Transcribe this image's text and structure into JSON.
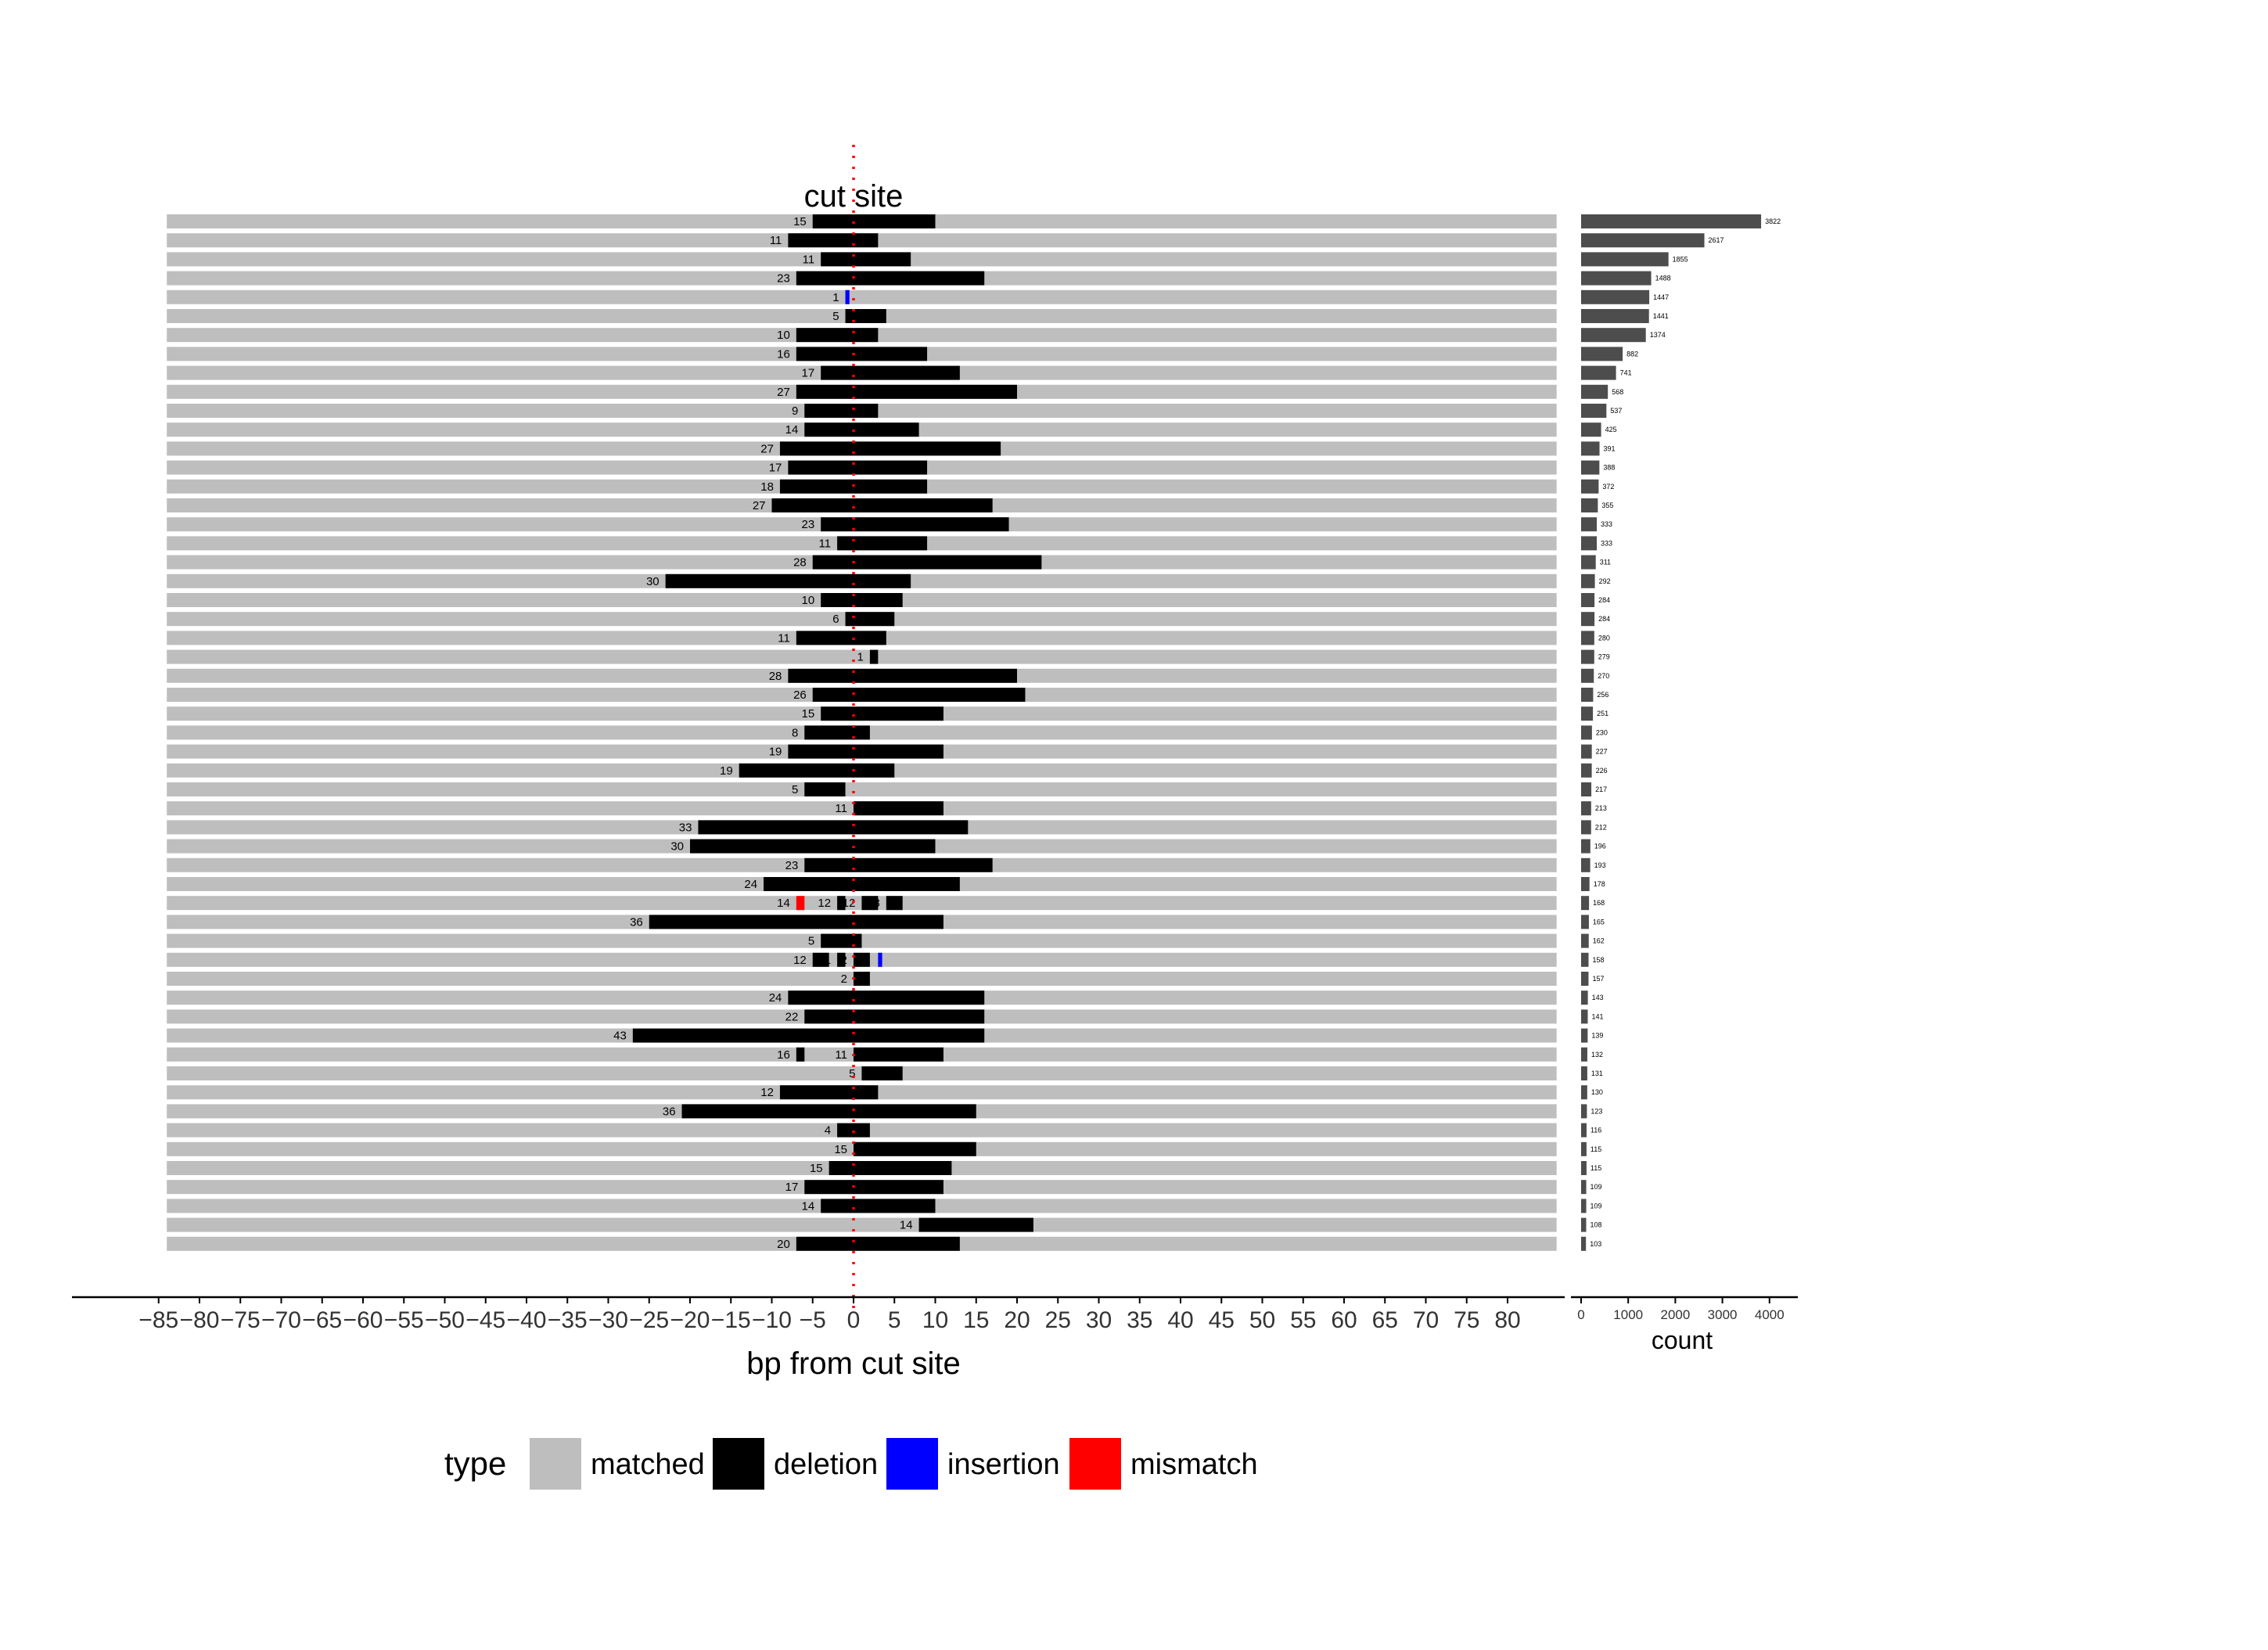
{
  "chart_data": [
    {
      "type": "bar",
      "subtype": "alignment-tracks",
      "annotation": "cut site",
      "xlabel": "bp from cut site",
      "xlim": [
        -85,
        85
      ],
      "xticks": [
        -85,
        -80,
        -75,
        -70,
        -65,
        -60,
        -55,
        -50,
        -45,
        -40,
        -35,
        -30,
        -25,
        -20,
        -15,
        -10,
        -5,
        0,
        5,
        10,
        15,
        20,
        25,
        30,
        35,
        40,
        45,
        50,
        55,
        60,
        65,
        70,
        75,
        80
      ],
      "xtick_labels": [
        "−85",
        "−80",
        "−75",
        "−70",
        "−65",
        "−60",
        "−55",
        "−50",
        "−45",
        "−40",
        "−35",
        "−30",
        "−25",
        "−20",
        "−15",
        "−10",
        "−5",
        "0",
        "5",
        "10",
        "15",
        "20",
        "25",
        "30",
        "35",
        "40",
        "45",
        "50",
        "55",
        "60",
        "65",
        "70",
        "75",
        "80"
      ],
      "matched_range": [
        -84,
        86
      ],
      "cut_site": 0,
      "legend": {
        "title": "type",
        "position": "bottom",
        "items": [
          {
            "label": "matched",
            "color": "#bebebe"
          },
          {
            "label": "deletion",
            "color": "#000000"
          },
          {
            "label": "insertion",
            "color": "#0000ff"
          },
          {
            "label": "mismatch",
            "color": "#ff0000"
          }
        ]
      },
      "rows": [
        {
          "segments": [
            {
              "type": "deletion",
              "start": -5,
              "end": 10,
              "label": "15"
            }
          ]
        },
        {
          "segments": [
            {
              "type": "deletion",
              "start": -8,
              "end": 3,
              "label": "11"
            }
          ]
        },
        {
          "segments": [
            {
              "type": "deletion",
              "start": -4,
              "end": 7,
              "label": "11"
            }
          ]
        },
        {
          "segments": [
            {
              "type": "deletion",
              "start": -7,
              "end": 16,
              "label": "23"
            }
          ]
        },
        {
          "segments": [
            {
              "type": "insertion",
              "start": -1,
              "end": -0.5,
              "label": "1"
            }
          ]
        },
        {
          "segments": [
            {
              "type": "deletion",
              "start": -1,
              "end": 4,
              "label": "5"
            }
          ]
        },
        {
          "segments": [
            {
              "type": "deletion",
              "start": -7,
              "end": 3,
              "label": "10"
            }
          ]
        },
        {
          "segments": [
            {
              "type": "deletion",
              "start": -7,
              "end": 9,
              "label": "16"
            }
          ]
        },
        {
          "segments": [
            {
              "type": "deletion",
              "start": -4,
              "end": 13,
              "label": "17"
            }
          ]
        },
        {
          "segments": [
            {
              "type": "deletion",
              "start": -7,
              "end": 20,
              "label": "27"
            }
          ]
        },
        {
          "segments": [
            {
              "type": "deletion",
              "start": -6,
              "end": 3,
              "label": "9"
            }
          ]
        },
        {
          "segments": [
            {
              "type": "deletion",
              "start": -6,
              "end": 8,
              "label": "14"
            }
          ]
        },
        {
          "segments": [
            {
              "type": "deletion",
              "start": -9,
              "end": 18,
              "label": "27"
            }
          ]
        },
        {
          "segments": [
            {
              "type": "deletion",
              "start": -8,
              "end": 9,
              "label": "17"
            }
          ]
        },
        {
          "segments": [
            {
              "type": "deletion",
              "start": -9,
              "end": 9,
              "label": "18"
            }
          ]
        },
        {
          "segments": [
            {
              "type": "deletion",
              "start": -10,
              "end": 17,
              "label": "27"
            }
          ]
        },
        {
          "segments": [
            {
              "type": "deletion",
              "start": -4,
              "end": 19,
              "label": "23"
            }
          ]
        },
        {
          "segments": [
            {
              "type": "deletion",
              "start": -2,
              "end": 9,
              "label": "11"
            }
          ]
        },
        {
          "segments": [
            {
              "type": "deletion",
              "start": -5,
              "end": 23,
              "label": "28"
            }
          ]
        },
        {
          "segments": [
            {
              "type": "deletion",
              "start": -23,
              "end": 7,
              "label": "30"
            }
          ]
        },
        {
          "segments": [
            {
              "type": "deletion",
              "start": -4,
              "end": 6,
              "label": "10"
            }
          ]
        },
        {
          "segments": [
            {
              "type": "deletion",
              "start": -1,
              "end": 5,
              "label": "6"
            }
          ]
        },
        {
          "segments": [
            {
              "type": "deletion",
              "start": -7,
              "end": 4,
              "label": "11"
            }
          ]
        },
        {
          "segments": [
            {
              "type": "deletion",
              "start": 2,
              "end": 3,
              "label": "1"
            }
          ]
        },
        {
          "segments": [
            {
              "type": "deletion",
              "start": -8,
              "end": 20,
              "label": "28"
            }
          ]
        },
        {
          "segments": [
            {
              "type": "deletion",
              "start": -5,
              "end": 21,
              "label": "26"
            }
          ]
        },
        {
          "segments": [
            {
              "type": "deletion",
              "start": -4,
              "end": 11,
              "label": "15"
            }
          ]
        },
        {
          "segments": [
            {
              "type": "deletion",
              "start": -6,
              "end": 2,
              "label": "8"
            }
          ]
        },
        {
          "segments": [
            {
              "type": "deletion",
              "start": -8,
              "end": 11,
              "label": "19"
            }
          ]
        },
        {
          "segments": [
            {
              "type": "deletion",
              "start": -14,
              "end": 5,
              "label": "19"
            }
          ]
        },
        {
          "segments": [
            {
              "type": "deletion",
              "start": -6,
              "end": -1,
              "label": "5"
            }
          ]
        },
        {
          "segments": [
            {
              "type": "deletion",
              "start": 0,
              "end": 11,
              "label": "11"
            }
          ]
        },
        {
          "segments": [
            {
              "type": "deletion",
              "start": -19,
              "end": 14,
              "label": "33"
            }
          ]
        },
        {
          "segments": [
            {
              "type": "deletion",
              "start": -20,
              "end": 10,
              "label": "30"
            }
          ]
        },
        {
          "segments": [
            {
              "type": "deletion",
              "start": -6,
              "end": 17,
              "label": "23"
            }
          ]
        },
        {
          "segments": [
            {
              "type": "deletion",
              "start": -11,
              "end": 13,
              "label": "24"
            }
          ]
        },
        {
          "segments": [
            {
              "type": "mismatch",
              "start": -7,
              "end": -6,
              "label": "14"
            },
            {
              "type": "deletion",
              "start": -2,
              "end": -1,
              "label": "12"
            },
            {
              "type": "deletion",
              "start": 1,
              "end": 3,
              "label": "12"
            },
            {
              "type": "deletion",
              "start": 4,
              "end": 6,
              "label": "3"
            }
          ]
        },
        {
          "segments": [
            {
              "type": "deletion",
              "start": -25,
              "end": 11,
              "label": "36"
            }
          ]
        },
        {
          "segments": [
            {
              "type": "deletion",
              "start": -4,
              "end": 1,
              "label": "5"
            }
          ]
        },
        {
          "segments": [
            {
              "type": "deletion",
              "start": -5,
              "end": -3,
              "label": "12"
            },
            {
              "type": "deletion",
              "start": -2,
              "end": -1,
              "label": "1"
            },
            {
              "type": "deletion",
              "start": 0,
              "end": 2,
              "label": "2"
            },
            {
              "type": "insertion",
              "start": 3,
              "end": 3.5,
              "label": ""
            }
          ]
        },
        {
          "segments": [
            {
              "type": "deletion",
              "start": 0,
              "end": 2,
              "label": "2"
            }
          ]
        },
        {
          "segments": [
            {
              "type": "deletion",
              "start": -8,
              "end": 16,
              "label": "24"
            }
          ]
        },
        {
          "segments": [
            {
              "type": "deletion",
              "start": -6,
              "end": 16,
              "label": "22"
            }
          ]
        },
        {
          "segments": [
            {
              "type": "deletion",
              "start": -27,
              "end": 16,
              "label": "43"
            }
          ]
        },
        {
          "segments": [
            {
              "type": "deletion",
              "start": -7,
              "end": -6,
              "label": "16"
            },
            {
              "type": "deletion",
              "start": 0,
              "end": 11,
              "label": "11"
            }
          ]
        },
        {
          "segments": [
            {
              "type": "deletion",
              "start": 1,
              "end": 6,
              "label": "5"
            }
          ]
        },
        {
          "segments": [
            {
              "type": "deletion",
              "start": -9,
              "end": 3,
              "label": "12"
            }
          ]
        },
        {
          "segments": [
            {
              "type": "deletion",
              "start": -21,
              "end": 15,
              "label": "36"
            }
          ]
        },
        {
          "segments": [
            {
              "type": "deletion",
              "start": -2,
              "end": 2,
              "label": "4"
            }
          ]
        },
        {
          "segments": [
            {
              "type": "deletion",
              "start": 0,
              "end": 15,
              "label": "15"
            }
          ]
        },
        {
          "segments": [
            {
              "type": "deletion",
              "start": -3,
              "end": 12,
              "label": "15"
            }
          ]
        },
        {
          "segments": [
            {
              "type": "deletion",
              "start": -6,
              "end": 11,
              "label": "17"
            }
          ]
        },
        {
          "segments": [
            {
              "type": "deletion",
              "start": -4,
              "end": 10,
              "label": "14"
            }
          ]
        },
        {
          "segments": [
            {
              "type": "deletion",
              "start": 8,
              "end": 22,
              "label": "14"
            }
          ]
        },
        {
          "segments": [
            {
              "type": "deletion",
              "start": -7,
              "end": 13,
              "label": "20"
            }
          ]
        }
      ]
    },
    {
      "type": "bar",
      "orientation": "horizontal",
      "xlabel": "count",
      "xlim": [
        0,
        4000
      ],
      "xticks": [
        0,
        1000,
        2000,
        3000,
        4000
      ],
      "values": [
        3822,
        2617,
        1855,
        1488,
        1447,
        1441,
        1374,
        882,
        741,
        568,
        537,
        425,
        391,
        388,
        372,
        355,
        333,
        333,
        311,
        292,
        284,
        284,
        280,
        279,
        270,
        256,
        251,
        230,
        227,
        226,
        217,
        213,
        212,
        196,
        193,
        178,
        168,
        165,
        162,
        158,
        157,
        143,
        141,
        139,
        132,
        131,
        130,
        123,
        116,
        115,
        115,
        109,
        109,
        108,
        103
      ],
      "bar_color": "#4d4d4d"
    }
  ]
}
